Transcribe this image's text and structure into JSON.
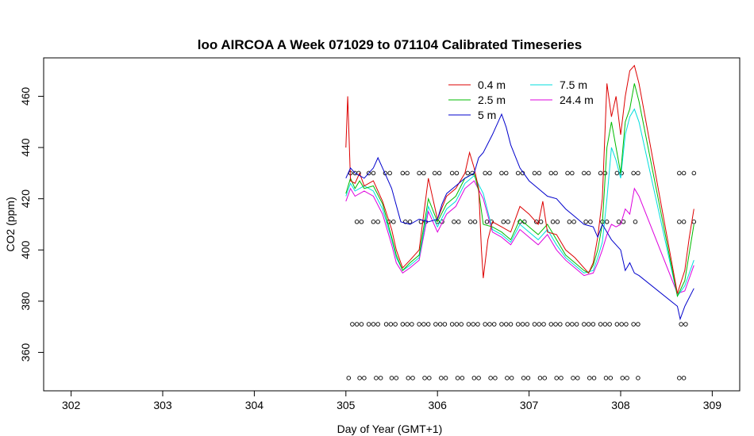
{
  "chart_data": {
    "type": "line",
    "title": "loo AIRCOA A  Week 071029 to 071104  Calibrated Timeseries",
    "xlabel": "Day of Year (GMT+1)",
    "ylabel": "CO2 (ppm)",
    "xlim": [
      301.7,
      309.3
    ],
    "ylim": [
      345,
      475
    ],
    "x_ticks": [
      302,
      303,
      304,
      305,
      306,
      307,
      308,
      309
    ],
    "y_ticks": [
      360,
      380,
      400,
      420,
      440,
      460
    ],
    "legend_position": "top-center",
    "colors": {
      "0.4 m": "#dd0000",
      "2.5 m": "#00bb00",
      "5 m": "#0000cc",
      "7.5 m": "#00dddd",
      "24.4 m": "#dd00dd",
      "markers": "#000000"
    },
    "series": [
      {
        "name": "0.4 m",
        "x": [
          305.0,
          305.02,
          305.05,
          305.1,
          305.15,
          305.2,
          305.3,
          305.4,
          305.5,
          305.55,
          305.62,
          305.7,
          305.8,
          305.9,
          305.95,
          306.0,
          306.1,
          306.2,
          306.3,
          306.35,
          306.4,
          306.45,
          306.48,
          306.5,
          306.55,
          306.6,
          306.7,
          306.8,
          306.9,
          307.0,
          307.1,
          307.15,
          307.2,
          307.3,
          307.4,
          307.5,
          307.6,
          307.65,
          307.7,
          307.75,
          307.8,
          307.85,
          307.9,
          307.95,
          308.0,
          308.05,
          308.1,
          308.15,
          308.2,
          308.62,
          308.7,
          308.75,
          308.8
        ],
        "y": [
          440,
          460,
          427,
          426,
          430,
          425,
          427,
          419,
          408,
          400,
          393,
          396,
          400,
          428,
          420,
          412,
          421,
          424,
          430,
          438,
          432,
          424,
          400,
          389,
          404,
          411,
          409,
          407,
          417,
          414,
          410,
          419,
          407,
          406,
          400,
          397,
          393,
          391,
          395,
          405,
          420,
          465,
          452,
          460,
          445,
          460,
          470,
          472,
          465,
          383,
          392,
          405,
          416
        ]
      },
      {
        "name": "2.5 m",
        "x": [
          305.0,
          305.05,
          305.1,
          305.15,
          305.2,
          305.3,
          305.4,
          305.5,
          305.55,
          305.62,
          305.7,
          305.8,
          305.9,
          306.0,
          306.1,
          306.2,
          306.3,
          306.4,
          306.45,
          306.5,
          306.6,
          306.7,
          306.8,
          306.9,
          307.0,
          307.1,
          307.2,
          307.3,
          307.4,
          307.5,
          307.6,
          307.65,
          307.7,
          307.75,
          307.8,
          307.85,
          307.9,
          307.95,
          308.0,
          308.05,
          308.1,
          308.15,
          308.2,
          308.62,
          308.7,
          308.8
        ],
        "y": [
          422,
          428,
          424,
          427,
          424,
          425,
          418,
          405,
          398,
          392,
          395,
          398,
          420,
          411,
          418,
          421,
          428,
          430,
          423,
          410,
          409,
          407,
          404,
          412,
          409,
          406,
          410,
          404,
          398,
          395,
          392,
          391,
          394,
          400,
          410,
          440,
          450,
          440,
          430,
          450,
          455,
          465,
          458,
          382,
          388,
          410
        ]
      },
      {
        "name": "5 m",
        "x": [
          305.0,
          305.05,
          305.1,
          305.2,
          305.3,
          305.35,
          305.4,
          305.5,
          305.6,
          305.7,
          305.8,
          305.9,
          306.0,
          306.05,
          306.1,
          306.2,
          306.3,
          306.4,
          306.45,
          306.5,
          306.6,
          306.7,
          306.75,
          306.8,
          306.9,
          307.0,
          307.1,
          307.2,
          307.3,
          307.4,
          307.5,
          307.6,
          307.7,
          307.75,
          307.8,
          307.85,
          307.9,
          308.0,
          308.05,
          308.1,
          308.15,
          308.2,
          308.62,
          308.65,
          308.7,
          308.8
        ],
        "y": [
          428,
          432,
          430,
          428,
          432,
          436,
          432,
          424,
          411,
          410,
          412,
          411,
          412,
          418,
          422,
          425,
          428,
          430,
          436,
          438,
          445,
          453,
          448,
          441,
          432,
          427,
          424,
          421,
          420,
          416,
          413,
          410,
          409,
          405,
          410,
          407,
          404,
          400,
          392,
          395,
          391,
          390,
          378,
          373,
          378,
          385
        ]
      },
      {
        "name": "7.5 m",
        "x": [
          305.0,
          305.05,
          305.1,
          305.2,
          305.3,
          305.4,
          305.5,
          305.55,
          305.62,
          305.7,
          305.8,
          305.9,
          306.0,
          306.1,
          306.2,
          306.3,
          306.4,
          306.5,
          306.6,
          306.7,
          306.8,
          306.9,
          307.0,
          307.1,
          307.2,
          307.3,
          307.4,
          307.5,
          307.6,
          307.7,
          307.75,
          307.8,
          307.85,
          307.9,
          307.95,
          308.0,
          308.05,
          308.1,
          308.15,
          308.2,
          308.62,
          308.7,
          308.8
        ],
        "y": [
          421,
          426,
          423,
          425,
          423,
          416,
          404,
          397,
          392,
          394,
          397,
          417,
          409,
          416,
          419,
          426,
          429,
          422,
          408,
          406,
          403,
          410,
          407,
          404,
          408,
          402,
          397,
          394,
          391,
          392,
          397,
          403,
          420,
          440,
          435,
          428,
          445,
          452,
          455,
          450,
          382,
          386,
          396
        ]
      },
      {
        "name": "24.4 m",
        "x": [
          305.0,
          305.05,
          305.1,
          305.2,
          305.3,
          305.4,
          305.5,
          305.55,
          305.62,
          305.7,
          305.8,
          305.9,
          306.0,
          306.1,
          306.2,
          306.3,
          306.4,
          306.5,
          306.6,
          306.7,
          306.8,
          306.9,
          307.0,
          307.1,
          307.2,
          307.3,
          307.4,
          307.5,
          307.6,
          307.7,
          307.75,
          307.8,
          307.85,
          307.9,
          307.95,
          308.0,
          308.05,
          308.1,
          308.15,
          308.2,
          308.62,
          308.7,
          308.8
        ],
        "y": [
          419,
          424,
          421,
          423,
          421,
          414,
          402,
          395,
          391,
          393,
          396,
          415,
          407,
          414,
          417,
          424,
          427,
          420,
          407,
          405,
          402,
          408,
          405,
          402,
          406,
          400,
          396,
          393,
          390,
          391,
          395,
          400,
          406,
          410,
          409,
          410,
          416,
          414,
          424,
          421,
          383,
          384,
          394
        ]
      }
    ],
    "marker_rows": [
      {
        "y": 430,
        "x": [
          305.05,
          305.1,
          305.14,
          305.25,
          305.3,
          305.43,
          305.48,
          305.62,
          305.67,
          305.8,
          305.85,
          305.97,
          306.02,
          306.16,
          306.21,
          306.33,
          306.38,
          306.52,
          306.57,
          306.7,
          306.75,
          306.88,
          306.93,
          307.06,
          307.11,
          307.24,
          307.29,
          307.42,
          307.47,
          307.6,
          307.65,
          307.78,
          307.83,
          307.96,
          308.01,
          308.14,
          308.19,
          308.64,
          308.69,
          308.8
        ]
      },
      {
        "y": 411,
        "x": [
          305.12,
          305.17,
          305.3,
          305.35,
          305.47,
          305.52,
          305.65,
          305.7,
          305.82,
          305.87,
          306.0,
          306.05,
          306.18,
          306.23,
          306.36,
          306.41,
          306.54,
          306.59,
          306.72,
          306.77,
          306.9,
          306.95,
          307.08,
          307.13,
          307.26,
          307.31,
          307.44,
          307.49,
          307.62,
          307.67,
          307.8,
          307.85,
          307.98,
          308.03,
          308.16,
          308.64,
          308.69,
          308.8
        ]
      },
      {
        "y": 371,
        "x": [
          305.07,
          305.12,
          305.17,
          305.25,
          305.3,
          305.35,
          305.44,
          305.49,
          305.54,
          305.62,
          305.67,
          305.72,
          305.8,
          305.85,
          305.9,
          305.98,
          306.03,
          306.08,
          306.16,
          306.21,
          306.26,
          306.34,
          306.39,
          306.44,
          306.52,
          306.57,
          306.62,
          306.7,
          306.75,
          306.8,
          306.88,
          306.93,
          306.98,
          307.06,
          307.11,
          307.16,
          307.24,
          307.29,
          307.34,
          307.42,
          307.47,
          307.52,
          307.6,
          307.65,
          307.7,
          307.78,
          307.83,
          307.88,
          307.96,
          308.01,
          308.06,
          308.14,
          308.19,
          308.66,
          308.71
        ]
      },
      {
        "y": 350,
        "x": [
          305.03,
          305.15,
          305.2,
          305.33,
          305.38,
          305.5,
          305.55,
          305.68,
          305.73,
          305.86,
          305.91,
          306.04,
          306.09,
          306.22,
          306.27,
          306.4,
          306.45,
          306.58,
          306.63,
          306.76,
          306.81,
          306.94,
          306.99,
          307.12,
          307.17,
          307.3,
          307.35,
          307.48,
          307.53,
          307.66,
          307.71,
          307.84,
          307.89,
          308.02,
          308.07,
          308.19,
          308.64,
          308.69
        ]
      }
    ]
  }
}
